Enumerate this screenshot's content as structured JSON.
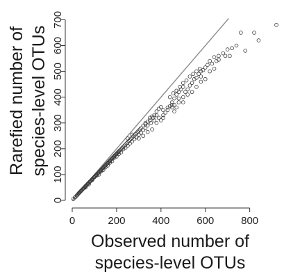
{
  "chart_data": {
    "type": "scatter",
    "xlabel": [
      "Observed number of",
      "species-level OTUs"
    ],
    "ylabel": [
      "Rarefied number of",
      "species-level OTUs"
    ],
    "xlim": [
      0,
      920
    ],
    "ylim": [
      0,
      720
    ],
    "x_ticks": [
      0,
      200,
      400,
      600,
      800
    ],
    "y_ticks": [
      0,
      100,
      200,
      300,
      400,
      500,
      600,
      700
    ],
    "grid": false,
    "reference_line": {
      "type": "identity",
      "from": [
        0,
        0
      ],
      "to": [
        705,
        705
      ]
    },
    "points": [
      [
        5,
        5
      ],
      [
        12,
        11
      ],
      [
        20,
        18
      ],
      [
        25,
        23
      ],
      [
        30,
        28
      ],
      [
        35,
        32
      ],
      [
        40,
        37
      ],
      [
        45,
        41
      ],
      [
        50,
        46
      ],
      [
        55,
        50
      ],
      [
        60,
        55
      ],
      [
        65,
        59
      ],
      [
        70,
        64
      ],
      [
        75,
        68
      ],
      [
        80,
        73
      ],
      [
        85,
        77
      ],
      [
        90,
        82
      ],
      [
        95,
        86
      ],
      [
        100,
        90
      ],
      [
        105,
        95
      ],
      [
        110,
        99
      ],
      [
        115,
        104
      ],
      [
        120,
        108
      ],
      [
        125,
        113
      ],
      [
        130,
        117
      ],
      [
        135,
        122
      ],
      [
        140,
        126
      ],
      [
        145,
        131
      ],
      [
        150,
        135
      ],
      [
        155,
        140
      ],
      [
        160,
        144
      ],
      [
        165,
        149
      ],
      [
        170,
        153
      ],
      [
        175,
        158
      ],
      [
        180,
        162
      ],
      [
        185,
        167
      ],
      [
        190,
        171
      ],
      [
        195,
        176
      ],
      [
        200,
        180
      ],
      [
        205,
        185
      ],
      [
        210,
        189
      ],
      [
        215,
        194
      ],
      [
        220,
        198
      ],
      [
        225,
        203
      ],
      [
        230,
        207
      ],
      [
        235,
        212
      ],
      [
        240,
        216
      ],
      [
        245,
        221
      ],
      [
        250,
        225
      ],
      [
        255,
        230
      ],
      [
        260,
        234
      ],
      [
        265,
        239
      ],
      [
        270,
        243
      ],
      [
        275,
        248
      ],
      [
        280,
        252
      ],
      [
        285,
        257
      ],
      [
        290,
        261
      ],
      [
        295,
        266
      ],
      [
        300,
        270
      ],
      [
        305,
        275
      ],
      [
        60,
        50
      ],
      [
        75,
        62
      ],
      [
        90,
        78
      ],
      [
        110,
        96
      ],
      [
        130,
        112
      ],
      [
        150,
        128
      ],
      [
        170,
        146
      ],
      [
        190,
        165
      ],
      [
        210,
        180
      ],
      [
        230,
        198
      ],
      [
        250,
        212
      ],
      [
        270,
        228
      ],
      [
        290,
        244
      ],
      [
        310,
        262
      ],
      [
        330,
        280
      ],
      [
        120,
        100
      ],
      [
        140,
        118
      ],
      [
        160,
        135
      ],
      [
        180,
        152
      ],
      [
        200,
        170
      ],
      [
        220,
        186
      ],
      [
        240,
        204
      ],
      [
        260,
        220
      ],
      [
        280,
        238
      ],
      [
        300,
        254
      ],
      [
        320,
        272
      ],
      [
        340,
        290
      ],
      [
        355,
        300
      ],
      [
        365,
        320
      ],
      [
        380,
        330
      ],
      [
        310,
        280
      ],
      [
        320,
        290
      ],
      [
        330,
        295
      ],
      [
        340,
        305
      ],
      [
        350,
        310
      ],
      [
        360,
        325
      ],
      [
        370,
        330
      ],
      [
        380,
        345
      ],
      [
        390,
        355
      ],
      [
        400,
        362
      ],
      [
        300,
        240
      ],
      [
        320,
        250
      ],
      [
        340,
        265
      ],
      [
        360,
        275
      ],
      [
        380,
        300
      ],
      [
        400,
        310
      ],
      [
        410,
        330
      ],
      [
        420,
        340
      ],
      [
        430,
        350
      ],
      [
        440,
        365
      ],
      [
        450,
        380
      ],
      [
        460,
        395
      ],
      [
        470,
        410
      ],
      [
        480,
        420
      ],
      [
        490,
        430
      ],
      [
        500,
        440
      ],
      [
        460,
        370
      ],
      [
        470,
        360
      ],
      [
        480,
        380
      ],
      [
        500,
        400
      ],
      [
        510,
        420
      ],
      [
        520,
        430
      ],
      [
        530,
        445
      ],
      [
        540,
        455
      ],
      [
        550,
        470
      ],
      [
        560,
        475
      ],
      [
        570,
        490
      ],
      [
        580,
        500
      ],
      [
        590,
        505
      ],
      [
        600,
        515
      ],
      [
        440,
        400
      ],
      [
        455,
        415
      ],
      [
        470,
        425
      ],
      [
        485,
        440
      ],
      [
        500,
        455
      ],
      [
        515,
        465
      ],
      [
        530,
        480
      ],
      [
        545,
        490
      ],
      [
        560,
        500
      ],
      [
        575,
        510
      ],
      [
        620,
        540
      ],
      [
        640,
        555
      ],
      [
        660,
        560
      ],
      [
        680,
        570
      ],
      [
        700,
        585
      ],
      [
        720,
        590
      ],
      [
        740,
        600
      ],
      [
        760,
        650
      ],
      [
        780,
        580
      ],
      [
        820,
        650
      ],
      [
        840,
        620
      ],
      [
        920,
        680
      ],
      [
        690,
        560
      ],
      [
        710,
        560
      ],
      [
        650,
        540
      ],
      [
        600,
        470
      ],
      [
        580,
        460
      ],
      [
        620,
        500
      ],
      [
        640,
        510
      ],
      [
        560,
        440
      ],
      [
        370,
        310
      ],
      [
        390,
        320
      ],
      [
        410,
        350
      ],
      [
        430,
        360
      ],
      [
        450,
        370
      ],
      [
        480,
        395
      ],
      [
        330,
        300
      ],
      [
        350,
        320
      ],
      [
        250,
        240
      ],
      [
        270,
        255
      ],
      [
        520,
        410
      ],
      [
        540,
        420
      ],
      [
        500,
        380
      ],
      [
        580,
        480
      ],
      [
        610,
        525
      ],
      [
        630,
        530
      ],
      [
        660,
        545
      ],
      [
        450,
        360
      ],
      [
        410,
        320
      ],
      [
        460,
        345
      ],
      [
        15,
        13
      ],
      [
        22,
        20
      ],
      [
        28,
        26
      ],
      [
        33,
        31
      ],
      [
        38,
        35
      ],
      [
        42,
        39
      ],
      [
        48,
        44
      ],
      [
        52,
        48
      ],
      [
        58,
        53
      ],
      [
        62,
        57
      ],
      [
        68,
        62
      ],
      [
        72,
        66
      ],
      [
        78,
        71
      ],
      [
        82,
        75
      ],
      [
        88,
        80
      ],
      [
        92,
        84
      ],
      [
        98,
        89
      ],
      [
        102,
        93
      ],
      [
        108,
        98
      ],
      [
        112,
        102
      ],
      [
        118,
        107
      ],
      [
        122,
        111
      ],
      [
        128,
        116
      ],
      [
        132,
        120
      ],
      [
        138,
        125
      ],
      [
        142,
        129
      ],
      [
        148,
        134
      ],
      [
        152,
        138
      ],
      [
        158,
        143
      ],
      [
        162,
        147
      ],
      [
        168,
        152
      ],
      [
        172,
        156
      ],
      [
        178,
        161
      ],
      [
        182,
        165
      ],
      [
        188,
        170
      ],
      [
        192,
        174
      ],
      [
        198,
        179
      ],
      [
        202,
        183
      ],
      [
        208,
        188
      ],
      [
        212,
        192
      ]
    ]
  },
  "colors": {
    "point_stroke": "#3a3a3a",
    "reference_line": "#8a8a8a",
    "axis": "#333333"
  }
}
